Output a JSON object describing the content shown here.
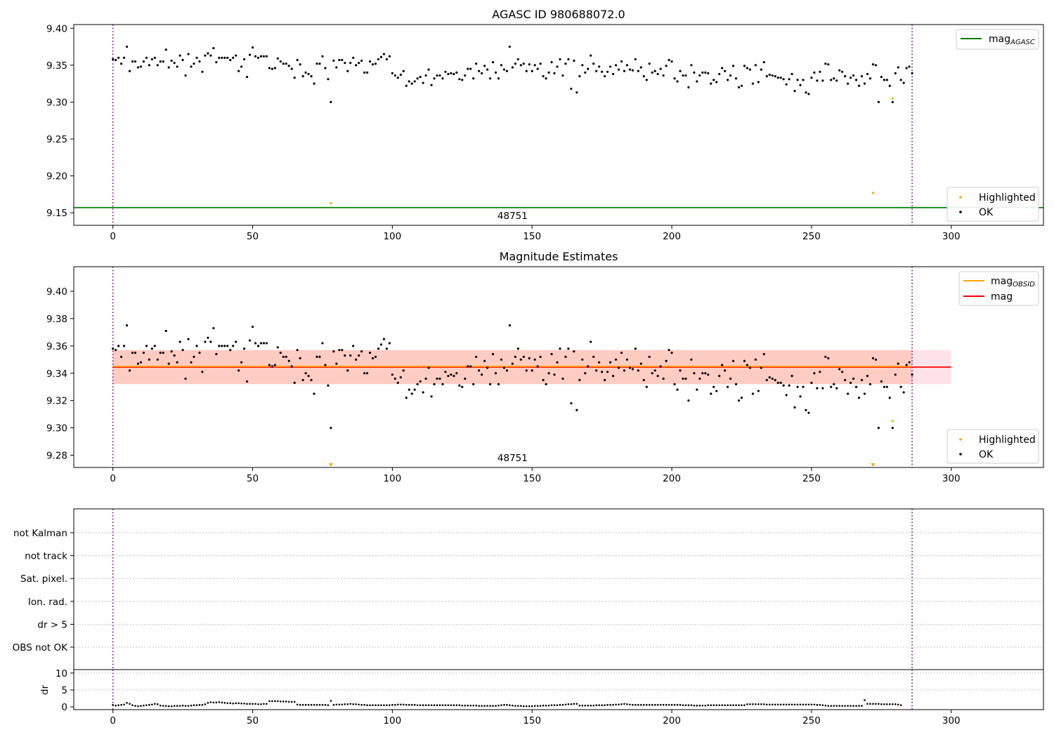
{
  "colors": {
    "ok": "#000000",
    "highlighted": "#ffa500",
    "mag_agasc": "#008000",
    "mag_obsid": "#ffa500",
    "mag": "#ff0000",
    "obsid_boundary": "#800080"
  },
  "chart_data": [
    {
      "type": "scatter",
      "title": "AGASC ID 980688072.0",
      "xlim": [
        -14,
        333
      ],
      "ylim": [
        9.133,
        9.405
      ],
      "xticks": [
        0,
        50,
        100,
        150,
        200,
        250,
        300
      ],
      "yticks": [
        9.15,
        9.2,
        9.25,
        9.3,
        9.35,
        9.4
      ],
      "ytick_labels": [
        "9.15",
        "9.20",
        "9.25",
        "9.30",
        "9.35",
        "9.40"
      ],
      "obsid_label": "48751",
      "obsid_label_x": 143,
      "obsid_boundaries": [
        0,
        286
      ],
      "legend_upper": [
        {
          "label": "mag",
          "sub": "AGASC",
          "color": "#008000"
        }
      ],
      "legend_lower": [
        {
          "label": "Highlighted",
          "color": "#ffa500"
        },
        {
          "label": "OK",
          "color": "#000000"
        }
      ],
      "hlines": [
        {
          "name": "mag_AGASC",
          "y": 9.157,
          "color": "#008000"
        }
      ],
      "series": [
        {
          "name": "OK",
          "color": "#000000",
          "x_start": 0,
          "y": [
            9.358,
            9.357,
            9.36,
            9.352,
            9.36,
            9.375,
            9.342,
            9.355,
            9.355,
            9.347,
            9.348,
            9.355,
            9.36,
            9.35,
            9.358,
            9.36,
            9.35,
            9.355,
            9.355,
            9.371,
            9.347,
            9.356,
            9.353,
            9.348,
            9.363,
            9.357,
            9.336,
            9.365,
            9.348,
            9.352,
            9.36,
            9.355,
            9.341,
            9.363,
            9.366,
            9.363,
            9.373,
            9.354,
            9.36,
            9.36,
            9.36,
            9.36,
            9.357,
            9.36,
            9.363,
            9.342,
            9.348,
            9.358,
            9.334,
            9.364,
            9.374,
            9.362,
            9.36,
            9.362,
            9.362,
            9.362,
            9.346,
            9.345,
            9.346,
            9.359,
            9.355,
            9.352,
            9.352,
            9.349,
            9.345,
            9.333,
            9.357,
            9.351,
            9.335,
            9.34,
            9.338,
            9.335,
            9.325,
            9.352,
            9.352,
            9.362,
            9.346,
            9.331,
            9.3,
            9.356,
            9.347,
            9.357,
            9.357,
            9.353,
            9.342,
            9.353,
            9.36,
            9.35,
            9.353,
            9.356,
            9.34,
            9.34,
            9.355,
            9.351,
            9.352,
            9.358,
            9.361,
            9.365,
            9.358,
            9.362,
            9.339,
            9.336,
            9.333,
            9.337,
            9.342,
            9.322,
            9.328,
            9.325,
            9.328,
            9.332,
            9.334,
            9.326,
            9.336,
            9.344,
            9.323,
            9.332,
            9.336,
            9.336,
            9.332,
            9.341,
            9.338,
            9.339,
            9.338,
            9.34,
            9.331,
            9.33,
            9.336,
            9.345,
            9.345,
            9.332,
            9.352,
            9.342,
            9.339,
            9.349,
            9.344,
            9.332,
            9.354,
            9.34,
            9.332,
            9.35,
            9.344,
            9.342,
            9.375,
            9.347,
            9.352,
            9.358,
            9.35,
            9.352,
            9.342,
            9.351,
            9.342,
            9.35,
            9.345,
            9.352,
            9.335,
            9.332,
            9.34,
            9.354,
            9.339,
            9.348,
            9.358,
            9.336,
            9.352,
            9.358,
            9.318,
            9.356,
            9.313,
            9.335,
            9.35,
            9.34,
            9.345,
            9.363,
            9.352,
            9.342,
            9.348,
            9.341,
            9.335,
            9.341,
            9.348,
            9.338,
            9.35,
            9.344,
            9.355,
            9.342,
            9.35,
            9.344,
            9.343,
            9.358,
            9.342,
            9.347,
            9.335,
            9.33,
            9.352,
            9.34,
            9.342,
            9.338,
            9.345,
            9.336,
            9.349,
            9.357,
            9.355,
            9.332,
            9.328,
            9.342,
            9.336,
            9.336,
            9.32,
            9.35,
            9.34,
            9.328,
            9.336,
            9.34,
            9.34,
            9.339,
            9.325,
            9.33,
            9.327,
            9.338,
            9.346,
            9.342,
            9.33,
            9.336,
            9.349,
            9.332,
            9.32,
            9.322,
            9.349,
            9.346,
            9.344,
            9.325,
            9.35,
            9.327,
            9.344,
            9.354,
            9.335,
            9.337,
            9.336,
            9.335,
            9.333,
            9.333,
            9.331,
            9.324,
            9.331,
            9.338,
            9.315,
            9.33,
            9.323,
            9.33,
            9.313,
            9.311,
            9.333,
            9.34,
            9.329,
            9.341,
            9.329,
            9.352,
            9.351,
            9.33,
            9.332,
            9.329,
            9.343,
            9.341,
            9.335,
            9.325,
            9.333,
            9.336,
            9.33,
            9.322,
            9.335,
            9.325,
            9.338,
            9.332,
            9.351,
            9.35,
            9.3,
            9.334,
            9.33,
            9.33,
            9.322,
            9.3,
            9.339,
            9.347,
            9.33,
            9.326,
            9.346,
            9.348,
            9.339
          ]
        },
        {
          "name": "Highlighted",
          "color": "#ffa500",
          "points": [
            [
              78,
              9.163
            ],
            [
              272,
              9.177
            ],
            [
              279,
              9.305
            ]
          ]
        }
      ]
    },
    {
      "type": "scatter",
      "title": "Magnitude Estimates",
      "xlim": [
        -14,
        333
      ],
      "ylim": [
        9.271,
        9.418
      ],
      "xticks": [
        0,
        50,
        100,
        150,
        200,
        250,
        300
      ],
      "yticks": [
        9.28,
        9.3,
        9.32,
        9.34,
        9.36,
        9.38,
        9.4
      ],
      "ytick_labels": [
        "9.28",
        "9.30",
        "9.32",
        "9.34",
        "9.36",
        "9.38",
        "9.40"
      ],
      "obsid_label": "48751",
      "obsid_label_x": 143,
      "obsid_boundaries": [
        0,
        286
      ],
      "legend_upper": [
        {
          "label": "mag",
          "sub": "OBSID",
          "color": "#ffa500"
        },
        {
          "label": "mag",
          "sub": "",
          "color": "#ff0000"
        }
      ],
      "legend_lower": [
        {
          "label": "Highlighted",
          "color": "#ffa500"
        },
        {
          "label": "OK",
          "color": "#000000"
        }
      ],
      "bands": [
        {
          "name": "mag band",
          "x": [
            0,
            300
          ],
          "y": [
            9.332,
            9.357
          ],
          "color": "#ffc0cb"
        },
        {
          "name": "mag_OBSID band",
          "x": [
            0,
            286
          ],
          "y": [
            9.332,
            9.357
          ],
          "color": "#ffa07a"
        }
      ],
      "hlines": [
        {
          "name": "mag",
          "y": 9.3445,
          "x": [
            0,
            300
          ],
          "color": "#ff0000"
        },
        {
          "name": "mag_OBSID",
          "y": 9.345,
          "x": [
            0,
            286
          ],
          "color": "#ffa500"
        }
      ],
      "series": [
        {
          "name": "OK",
          "color": "#000000",
          "x_start": 0,
          "same_as_panel": 0
        },
        {
          "name": "Highlighted",
          "color": "#ffa500",
          "points": [
            [
              279,
              9.305
            ]
          ],
          "below_range_markers": [
            78,
            272
          ]
        }
      ]
    },
    {
      "type": "flags",
      "ylabels": [
        "not Kalman",
        "not track",
        "Sat. pixel.",
        "Ion. rad.",
        "dr > 5",
        "OBS not OK"
      ],
      "obsid_boundaries": [
        0,
        286
      ],
      "xlim": [
        -14,
        333
      ]
    },
    {
      "type": "scatter",
      "ylabel": "dr",
      "xlim": [
        -14,
        333
      ],
      "ylim": [
        -0.8,
        11
      ],
      "yticks": [
        0,
        5,
        10
      ],
      "ytick_labels": [
        "0",
        "5",
        "10"
      ],
      "xticks": [
        0,
        50,
        100,
        150,
        200,
        250,
        300
      ],
      "obsid_boundaries": [
        0,
        286
      ],
      "series": [
        {
          "name": "dr",
          "color": "#000000",
          "x_start": 0,
          "y": [
            0.6,
            0.4,
            0.5,
            0.6,
            0.7,
            1.2,
            0.9,
            0.5,
            0.3,
            0.2,
            0.3,
            0.4,
            0.5,
            0.6,
            0.7,
            0.9,
            0.8,
            0.4,
            0.3,
            0.3,
            0.2,
            0.2,
            0.3,
            0.3,
            0.3,
            0.4,
            0.3,
            0.3,
            0.4,
            0.5,
            0.5,
            0.6,
            0.6,
            0.8,
            1.2,
            1.4,
            1.3,
            1.3,
            1.4,
            1.3,
            1.2,
            1.1,
            1.1,
            1.0,
            1.1,
            1.1,
            1.0,
            1.0,
            0.9,
            0.9,
            0.9,
            0.9,
            0.8,
            0.8,
            0.9,
            0.9,
            1.7,
            1.7,
            1.7,
            1.7,
            1.6,
            1.6,
            1.6,
            1.5,
            1.5,
            1.5,
            0.7,
            0.6,
            0.6,
            0.6,
            0.6,
            0.6,
            0.6,
            0.6,
            0.6,
            0.6,
            0.6,
            0.5,
            1.8,
            0.6,
            0.7,
            0.7,
            0.7,
            0.8,
            0.8,
            0.9,
            0.8,
            0.8,
            0.7,
            0.6,
            0.6,
            0.5,
            0.5,
            0.5,
            0.5,
            0.5,
            0.5,
            0.5,
            0.5,
            0.5,
            0.6,
            0.6,
            0.7,
            0.7,
            0.7,
            0.6,
            0.6,
            0.6,
            0.6,
            0.5,
            0.5,
            0.5,
            0.5,
            0.5,
            0.5,
            0.5,
            0.5,
            0.5,
            0.5,
            0.5,
            0.5,
            0.5,
            0.5,
            0.5,
            0.5,
            0.4,
            0.4,
            0.4,
            0.4,
            0.4,
            0.4,
            0.3,
            0.3,
            0.3,
            0.3,
            0.3,
            0.3,
            0.3,
            0.4,
            0.5,
            0.6,
            0.6,
            0.5,
            0.4,
            0.3,
            0.3,
            0.3,
            0.2,
            0.2,
            0.2,
            0.2,
            0.3,
            0.3,
            0.3,
            0.4,
            0.4,
            0.4,
            0.5,
            0.5,
            0.5,
            0.6,
            0.6,
            0.7,
            0.8,
            0.8,
            0.9,
            0.9,
            0.4,
            0.4,
            0.4,
            0.4,
            0.4,
            0.4,
            0.5,
            0.5,
            0.5,
            0.5,
            0.6,
            0.6,
            0.6,
            0.7,
            0.7,
            0.8,
            0.9,
            0.8,
            0.7,
            0.6,
            0.6,
            0.6,
            0.6,
            0.6,
            0.6,
            0.6,
            0.6,
            0.6,
            0.6,
            0.6,
            0.6,
            0.6,
            0.6,
            0.6,
            0.6,
            0.6,
            0.6,
            0.5,
            0.5,
            0.5,
            0.5,
            0.4,
            0.4,
            0.4,
            0.4,
            0.4,
            0.5,
            0.5,
            0.5,
            0.5,
            0.5,
            0.5,
            0.5,
            0.5,
            0.5,
            0.5,
            0.5,
            0.5,
            0.5,
            0.5,
            0.8,
            0.8,
            0.8,
            0.8,
            0.8,
            0.8,
            0.8,
            0.7,
            0.7,
            0.7,
            0.7,
            0.7,
            0.7,
            0.7,
            0.7,
            0.7,
            0.7,
            0.7,
            0.7,
            0.7,
            0.7,
            0.7,
            0.7,
            0.7,
            0.7,
            0.6,
            0.6,
            0.5,
            0.4,
            0.3,
            0.3,
            0.3,
            0.3,
            0.3,
            0.3,
            0.3,
            0.3,
            0.3,
            0.3,
            0.3,
            0.3,
            0.3,
            2.0,
            0.9,
            0.9,
            0.9,
            0.9,
            0.9,
            0.8,
            0.8,
            0.8,
            0.8,
            0.8,
            0.8,
            0.7,
            0.5
          ]
        }
      ]
    }
  ]
}
